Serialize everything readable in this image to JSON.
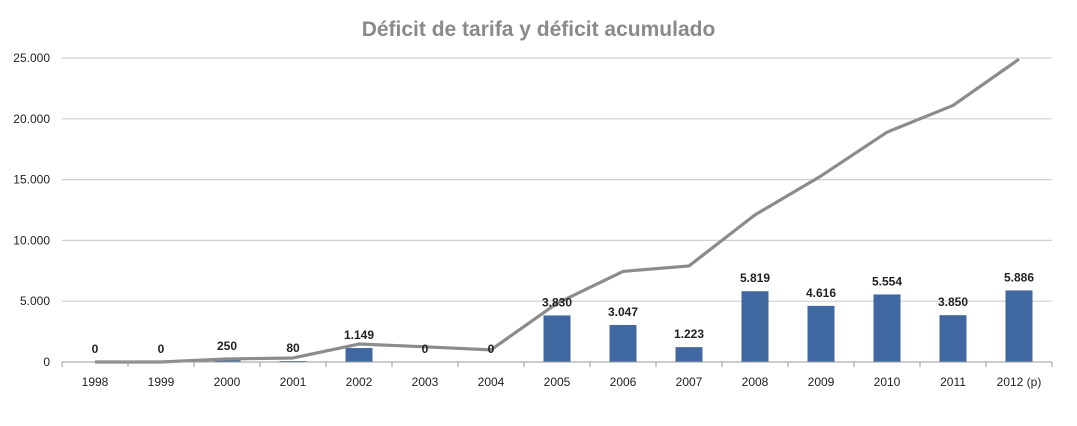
{
  "chart_data": {
    "type": "bar",
    "title": "Déficit de tarifa y déficit acumulado",
    "xlabel": "",
    "ylabel": "",
    "ylim": [
      0,
      25000
    ],
    "yticks": [
      "0",
      "5.000",
      "10.000",
      "15.000",
      "20.000",
      "25.000"
    ],
    "ytick_values": [
      0,
      5000,
      10000,
      15000,
      20000,
      25000
    ],
    "grid": true,
    "categories": [
      "1998",
      "1999",
      "2000",
      "2001",
      "2002",
      "2003",
      "2004",
      "2005",
      "2006",
      "2007",
      "2008",
      "2009",
      "2010",
      "2011",
      "2012 (p)"
    ],
    "series": [
      {
        "type": "bar",
        "color": "#3f68a0",
        "values": [
          0,
          0,
          250,
          80,
          1149,
          0,
          0,
          3830,
          3047,
          1223,
          5819,
          4616,
          5554,
          3850,
          5886
        ],
        "labels": [
          "0",
          "0",
          "250",
          "80",
          "1.149",
          "0",
          "0",
          "3.830",
          "3.047",
          "1.223",
          "5.819",
          "4.616",
          "5.554",
          "3.850",
          "5.886"
        ]
      },
      {
        "type": "line",
        "color": "#8c8c8c",
        "values": [
          0,
          0,
          250,
          330,
          1479,
          1250,
          1000,
          4830,
          7450,
          7900,
          12100,
          15300,
          18900,
          21100,
          24900
        ]
      }
    ]
  }
}
